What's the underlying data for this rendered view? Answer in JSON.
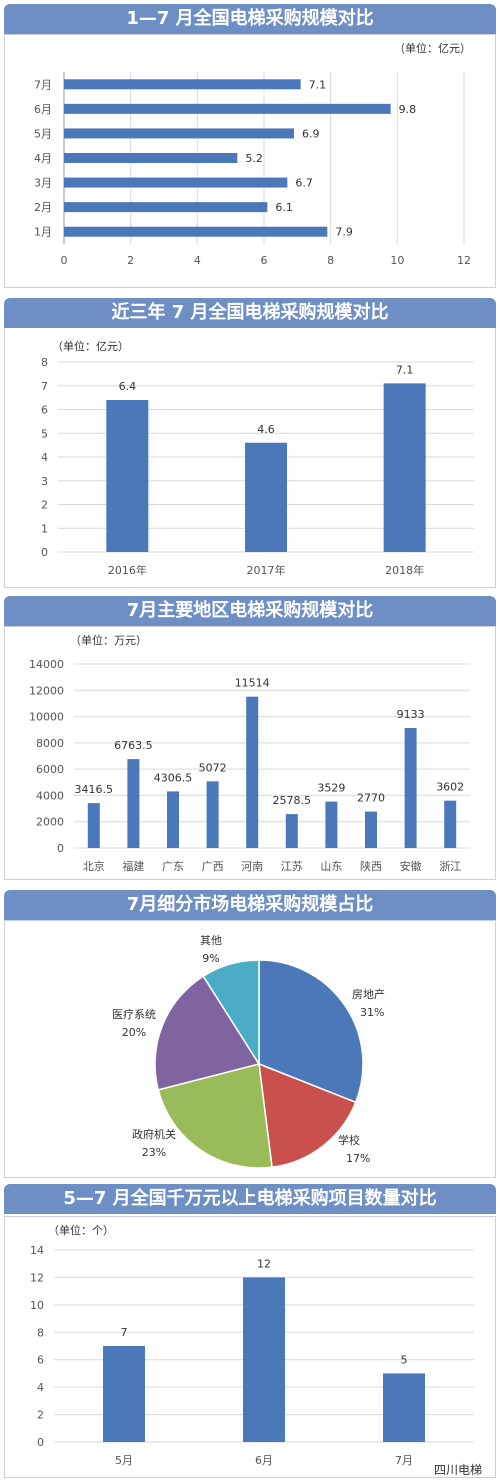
{
  "watermark": "四川电梯",
  "chart_data": [
    {
      "type": "bar",
      "orientation": "horizontal",
      "title": "1—7 月全国电梯采购规模对比",
      "unit": "（单位：亿元）",
      "categories": [
        "1月",
        "2月",
        "3月",
        "4月",
        "5月",
        "6月",
        "7月"
      ],
      "values": [
        7.9,
        6.1,
        6.7,
        5.2,
        6.9,
        9.8,
        7.1
      ],
      "xticks": [
        0,
        2,
        4,
        6,
        8,
        10,
        12
      ],
      "xlim": [
        0,
        12
      ],
      "color": "#4a78b8",
      "grid": true
    },
    {
      "type": "bar",
      "title": "近三年 7 月全国电梯采购规模对比",
      "unit": "（单位：亿元）",
      "categories": [
        "2016年",
        "2017年",
        "2018年"
      ],
      "values": [
        6.4,
        4.6,
        7.1
      ],
      "yticks": [
        0,
        1,
        2,
        3,
        4,
        5,
        6,
        7,
        8
      ],
      "ylim": [
        0,
        8
      ],
      "color": "#4a78b8",
      "grid": true
    },
    {
      "type": "bar",
      "title": "7月主要地区电梯采购规模对比",
      "unit": "（单位：万元）",
      "categories": [
        "北京",
        "福建",
        "广东",
        "广西",
        "河南",
        "江苏",
        "山东",
        "陕西",
        "安徽",
        "浙江"
      ],
      "values": [
        3416.5,
        6763.5,
        4306.5,
        5072,
        11514,
        2578.5,
        3529,
        2770,
        9133,
        3602
      ],
      "value_labels": [
        "3416.5",
        "6763.5",
        "4306.5",
        "5072",
        "11514",
        "2578.5",
        "3529",
        "2770",
        "9133",
        "3602"
      ],
      "yticks": [
        0,
        2000,
        4000,
        6000,
        8000,
        10000,
        12000,
        14000
      ],
      "ylim": [
        0,
        14000
      ],
      "color": "#4a78b8",
      "grid": true
    },
    {
      "type": "pie",
      "title": "7月细分市场电梯采购规模占比",
      "slices": [
        {
          "label": "房地产",
          "value": 31,
          "pct": "31%",
          "color": "#4a78b8"
        },
        {
          "label": "学校",
          "value": 17,
          "pct": "17%",
          "color": "#c9504c"
        },
        {
          "label": "政府机关",
          "value": 23,
          "pct": "23%",
          "color": "#9abb59"
        },
        {
          "label": "医疗系统",
          "value": 20,
          "pct": "20%",
          "color": "#8064a2"
        },
        {
          "label": "其他",
          "value": 9,
          "pct": "9%",
          "color": "#4bacc6"
        }
      ]
    },
    {
      "type": "bar",
      "title": "5—7 月全国千万元以上电梯采购项目数量对比",
      "unit": "（单位：个）",
      "categories": [
        "5月",
        "6月",
        "7月"
      ],
      "values": [
        7,
        12,
        5
      ],
      "yticks": [
        0,
        2,
        4,
        6,
        8,
        10,
        12,
        14
      ],
      "ylim": [
        0,
        14
      ],
      "color": "#4a78b8",
      "grid": true
    }
  ]
}
